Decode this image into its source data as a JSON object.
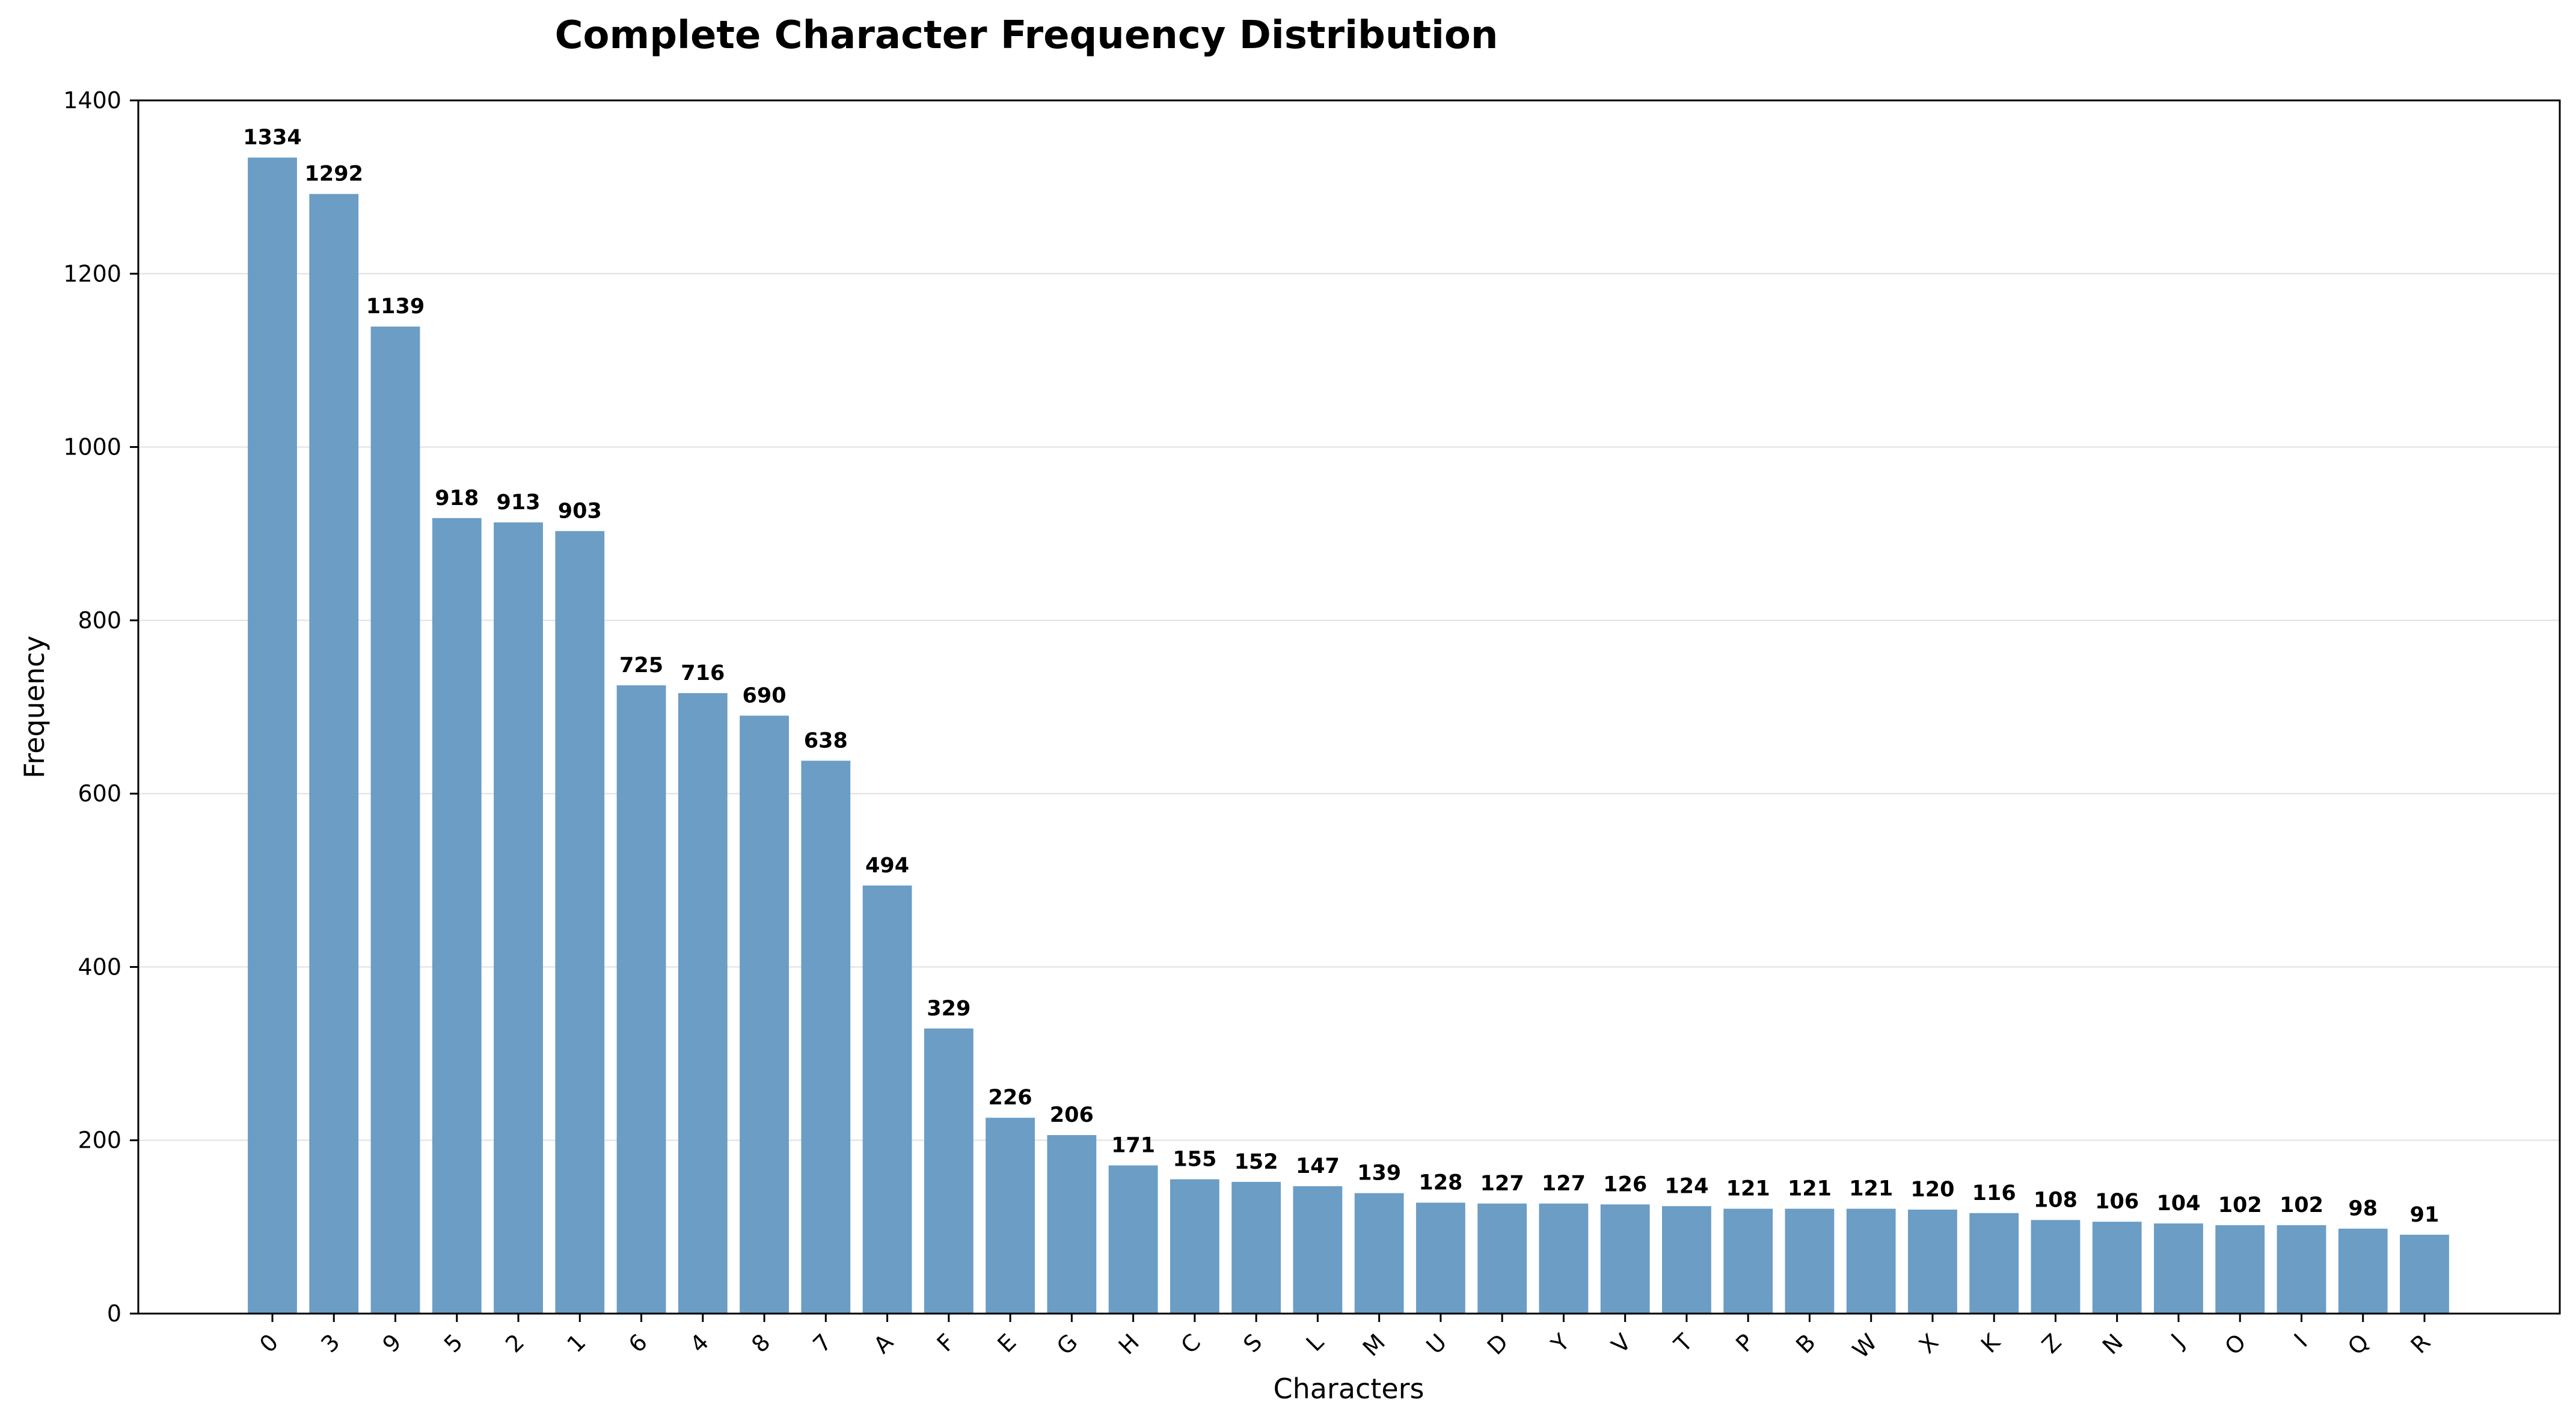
{
  "chart_data": {
    "type": "bar",
    "title": "Complete Character Frequency Distribution",
    "xlabel": "Characters",
    "ylabel": "Frequency",
    "ylim": [
      0,
      1400
    ],
    "yticks": [
      0,
      200,
      400,
      600,
      800,
      1000,
      1200,
      1400
    ],
    "grid": "y",
    "bar_color": "#6b9dc5",
    "categories": [
      "0",
      "3",
      "9",
      "5",
      "2",
      "1",
      "6",
      "4",
      "8",
      "7",
      "A",
      "F",
      "E",
      "G",
      "H",
      "C",
      "S",
      "L",
      "M",
      "U",
      "D",
      "Y",
      "V",
      "T",
      "P",
      "B",
      "W",
      "X",
      "K",
      "Z",
      "N",
      "J",
      "O",
      "I",
      "Q",
      "R"
    ],
    "values": [
      1334,
      1292,
      1139,
      918,
      913,
      903,
      725,
      716,
      690,
      638,
      494,
      329,
      226,
      206,
      171,
      155,
      152,
      147,
      139,
      128,
      127,
      127,
      126,
      124,
      121,
      121,
      121,
      120,
      116,
      108,
      106,
      104,
      102,
      102,
      98,
      91
    ]
  }
}
